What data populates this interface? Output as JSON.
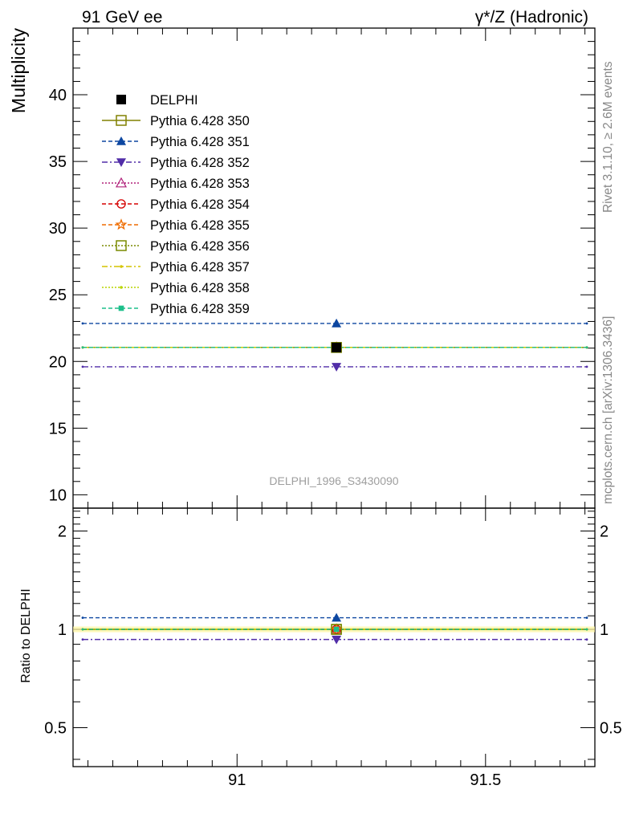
{
  "header": {
    "left_title": "91 GeV ee",
    "right_title": "γ*/Z (Hadronic)"
  },
  "side_labels": {
    "rivet": "Rivet 3.1.10, ≥ 2.6M events",
    "mcplots": "mcplots.cern.ch [arXiv:1306.3436]"
  },
  "chart_data": [
    {
      "type": "scatter",
      "panel": "main",
      "ylabel": "Multiplicity",
      "analysis_label": "DELPHI_1996_S3430090",
      "xlim": [
        90.67,
        91.72
      ],
      "ylim": [
        9.0,
        45.0
      ],
      "yticks_major": [
        10,
        15,
        20,
        25,
        30,
        35,
        40
      ],
      "x": [
        91.2
      ],
      "legend_position": "upper-left",
      "series": [
        {
          "name": "DELPHI",
          "values": [
            21.05
          ],
          "color": "#000000",
          "marker": "square-filled",
          "line": "none"
        },
        {
          "name": "Pythia 6.428 350",
          "values": [
            21.05
          ],
          "color": "#808000",
          "marker": "square-open",
          "line": "solid"
        },
        {
          "name": "Pythia 6.428 351",
          "values": [
            22.85
          ],
          "color": "#0d47a1",
          "marker": "triangle-up-filled",
          "line": "dashed"
        },
        {
          "name": "Pythia 6.428 352",
          "values": [
            19.6
          ],
          "color": "#512da8",
          "marker": "triangle-down-filled",
          "line": "dashdot"
        },
        {
          "name": "Pythia 6.428 353",
          "values": [
            21.05
          ],
          "color": "#b0207a",
          "marker": "triangle-up-open",
          "line": "dotted"
        },
        {
          "name": "Pythia 6.428 354",
          "values": [
            21.05
          ],
          "color": "#d50000",
          "marker": "circle-open",
          "line": "dashed"
        },
        {
          "name": "Pythia 6.428 355",
          "values": [
            21.05
          ],
          "color": "#ef6c00",
          "marker": "star-open",
          "line": "dashed"
        },
        {
          "name": "Pythia 6.428 356",
          "values": [
            21.05
          ],
          "color": "#7a8a00",
          "marker": "square-open",
          "line": "dotted"
        },
        {
          "name": "Pythia 6.428 357",
          "values": [
            21.05
          ],
          "color": "#d4c400",
          "marker": "dot",
          "line": "dashdot"
        },
        {
          "name": "Pythia 6.428 358",
          "values": [
            21.05
          ],
          "color": "#b8d400",
          "marker": "dot",
          "line": "dotted"
        },
        {
          "name": "Pythia 6.428 359",
          "values": [
            21.05
          ],
          "color": "#1dbf8a",
          "marker": "square-filled-small",
          "line": "dashed"
        }
      ]
    },
    {
      "type": "scatter",
      "panel": "ratio",
      "ylabel": "Ratio to DELPHI",
      "xlim": [
        90.67,
        91.72
      ],
      "ylim": [
        0.38,
        2.35
      ],
      "yscale": "log",
      "yticks_major": [
        0.5,
        1,
        2
      ],
      "xticks_major": [
        91,
        91.5
      ],
      "x": [
        91.2
      ],
      "series": [
        {
          "name": "Pythia 6.428 350",
          "values": [
            1.0
          ]
        },
        {
          "name": "Pythia 6.428 351",
          "values": [
            1.085
          ]
        },
        {
          "name": "Pythia 6.428 352",
          "values": [
            0.931
          ]
        },
        {
          "name": "Pythia 6.428 353",
          "values": [
            1.0
          ]
        },
        {
          "name": "Pythia 6.428 354",
          "values": [
            1.0
          ]
        },
        {
          "name": "Pythia 6.428 355",
          "values": [
            1.0
          ]
        },
        {
          "name": "Pythia 6.428 356",
          "values": [
            1.0
          ]
        },
        {
          "name": "Pythia 6.428 357",
          "values": [
            1.0
          ]
        },
        {
          "name": "Pythia 6.428 358",
          "values": [
            1.0
          ]
        },
        {
          "name": "Pythia 6.428 359",
          "values": [
            1.0
          ]
        }
      ]
    }
  ]
}
